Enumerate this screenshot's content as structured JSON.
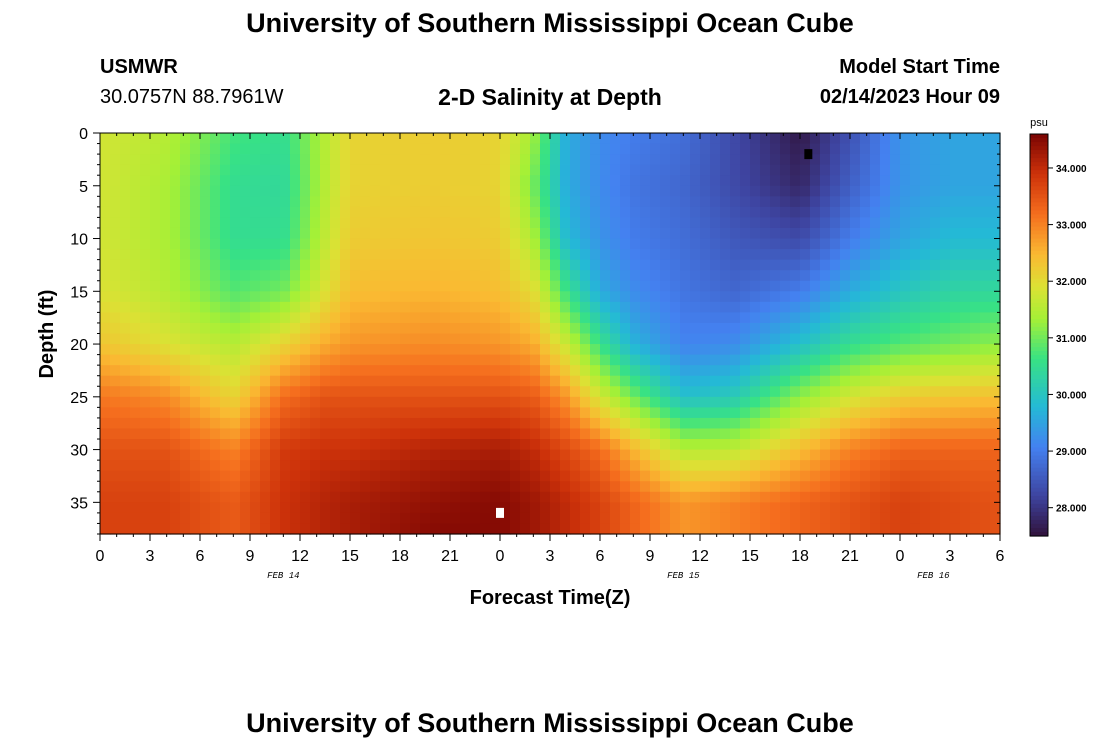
{
  "header": {
    "title": "University of Southern Mississippi Ocean Cube",
    "station": "USMWR",
    "coords": "30.0757N  88.7961W",
    "chart_title": "2-D Salinity at Depth",
    "model_label": "Model Start Time",
    "model_time": "02/14/2023 Hour 09"
  },
  "footer": {
    "title": "University of Southern Mississippi Ocean Cube"
  },
  "chart_data": {
    "type": "heatmap",
    "title": "2-D Salinity at Depth",
    "xlabel": "Forecast Time(Z)",
    "ylabel": "Depth (ft)",
    "x_range_hours": [
      0,
      54
    ],
    "x_tick_labels": [
      "0",
      "3",
      "6",
      "9",
      "12",
      "15",
      "18",
      "21",
      "0",
      "3",
      "6",
      "9",
      "12",
      "15",
      "18",
      "21",
      "0",
      "3",
      "6"
    ],
    "date_labels": [
      {
        "text": "FEB 14",
        "at_hour": 11
      },
      {
        "text": "FEB 15",
        "at_hour": 35
      },
      {
        "text": "FEB 16",
        "at_hour": 50
      }
    ],
    "ylim": [
      0,
      38
    ],
    "y_ticks": [
      0,
      5,
      10,
      15,
      20,
      25,
      30,
      35
    ],
    "colorbar": {
      "unit": "psu",
      "range": [
        27.5,
        34.6
      ],
      "ticks": [
        "28.000",
        "29.000",
        "30.000",
        "31.000",
        "32.000",
        "33.000",
        "34.000"
      ]
    },
    "profile_times_hours": [
      0,
      4,
      8,
      11,
      13.5,
      15,
      20,
      24,
      26,
      28,
      30,
      32,
      35,
      38,
      42,
      45,
      48,
      51,
      54
    ],
    "profile_depths_ft": [
      0,
      5,
      10,
      15,
      20,
      25,
      30,
      35,
      38
    ],
    "salinity_psu": [
      [
        31.8,
        31.8,
        31.8,
        31.9,
        32.3,
        33.1,
        33.5,
        33.7,
        33.7
      ],
      [
        31.5,
        31.4,
        31.4,
        31.5,
        31.9,
        32.9,
        33.5,
        33.7,
        33.7
      ],
      [
        30.7,
        30.5,
        30.5,
        30.8,
        31.5,
        32.1,
        33.0,
        33.4,
        33.4
      ],
      [
        30.5,
        30.4,
        30.5,
        31.0,
        32.1,
        33.2,
        33.8,
        33.9,
        33.9
      ],
      [
        31.5,
        31.5,
        31.6,
        31.9,
        32.6,
        33.5,
        33.9,
        34.1,
        34.1
      ],
      [
        32.1,
        32.1,
        32.2,
        32.4,
        32.8,
        33.5,
        33.9,
        34.2,
        34.2
      ],
      [
        32.2,
        32.2,
        32.3,
        32.5,
        32.9,
        33.5,
        34.1,
        34.4,
        34.5
      ],
      [
        32.1,
        32.1,
        32.2,
        32.4,
        32.8,
        33.5,
        34.2,
        34.5,
        34.5
      ],
      [
        31.3,
        31.0,
        31.4,
        32.0,
        32.6,
        33.4,
        34.0,
        34.3,
        34.3
      ],
      [
        29.6,
        29.6,
        29.8,
        30.6,
        31.7,
        32.8,
        33.6,
        34.0,
        34.0
      ],
      [
        29.2,
        29.2,
        29.3,
        29.6,
        30.6,
        31.8,
        33.2,
        33.7,
        33.7
      ],
      [
        29.0,
        28.9,
        29.0,
        29.2,
        29.7,
        31.0,
        32.5,
        33.3,
        33.3
      ],
      [
        28.8,
        28.7,
        28.8,
        28.9,
        29.1,
        29.9,
        31.5,
        32.8,
        32.8
      ],
      [
        28.3,
        28.3,
        28.5,
        28.7,
        29.2,
        30.1,
        31.6,
        33.0,
        33.0
      ],
      [
        27.6,
        27.8,
        28.3,
        29.0,
        29.9,
        31.2,
        32.4,
        33.3,
        33.3
      ],
      [
        28.4,
        28.6,
        29.0,
        29.6,
        30.5,
        31.8,
        33.0,
        33.5,
        33.5
      ],
      [
        29.3,
        29.3,
        29.5,
        30.0,
        30.8,
        32.2,
        33.3,
        33.7,
        33.7
      ],
      [
        29.5,
        29.5,
        29.8,
        30.3,
        31.0,
        32.3,
        33.3,
        33.6,
        33.6
      ],
      [
        29.5,
        29.5,
        29.8,
        30.4,
        31.2,
        32.4,
        33.3,
        33.5,
        33.5
      ]
    ],
    "markers": [
      {
        "type": "maximum",
        "hour": 24,
        "depth_ft": 36,
        "color": "#ffffff"
      },
      {
        "type": "minimum",
        "hour": 42.5,
        "depth_ft": 2,
        "color": "#000000"
      }
    ]
  }
}
